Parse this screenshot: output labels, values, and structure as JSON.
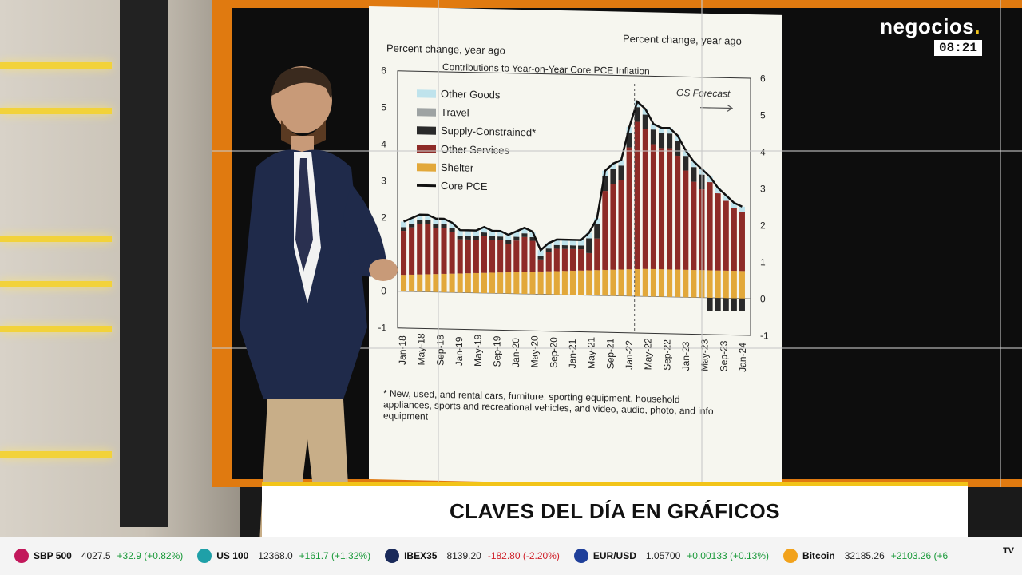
{
  "brand": {
    "name": "negocios",
    "dot": ".",
    "time": "08:21"
  },
  "banner": {
    "title": "CLAVES DEL DÍA EN GRÁFICOS"
  },
  "chart": {
    "left_label": "Percent change, year ago",
    "right_label": "Percent change, year ago",
    "title": "Contributions to Year-on-Year Core PCE Inflation",
    "forecast_label": "GS Forecast",
    "footnote_1": "* New, used, and rental cars, furniture, sporting equipment, household",
    "footnote_2": "appliances, sports and recreational vehicles, and video, audio, photo, and info",
    "footnote_3": "equipment",
    "legend": [
      {
        "label": "Other Goods",
        "color": "#bfe3ec"
      },
      {
        "label": "Travel",
        "color": "#9ea3a3"
      },
      {
        "label": "Supply-Constrained*",
        "color": "#2a2a2a"
      },
      {
        "label": "Other Services",
        "color": "#8e2b27"
      },
      {
        "label": "Shelter",
        "color": "#e2a83a"
      },
      {
        "label": "Core PCE",
        "color": "#111111"
      }
    ],
    "y_ticks_left": [
      "6",
      "5",
      "4",
      "3",
      "2",
      "1",
      "0",
      "-1"
    ],
    "y_ticks_right": [
      "6",
      "5",
      "4",
      "3",
      "2",
      "1",
      "0",
      "-1"
    ],
    "x_ticks": [
      "Jan-18",
      "May-18",
      "Sep-18",
      "Jan-19",
      "May-19",
      "Sep-19",
      "Jan-20",
      "May-20",
      "Sep-20",
      "Jan-21",
      "May-21",
      "Sep-21",
      "Jan-22",
      "May-22",
      "Sep-22",
      "Jan-23",
      "May-23",
      "Sep-23",
      "Jan-24"
    ]
  },
  "chart_data": {
    "type": "bar",
    "ylim": [
      -1,
      6
    ],
    "series": [
      {
        "name": "Core PCE",
        "values": [
          1.9,
          2.0,
          2.1,
          2.1,
          2.0,
          2.0,
          1.9,
          1.7,
          1.7,
          1.7,
          1.8,
          1.7,
          1.7,
          1.6,
          1.7,
          1.8,
          1.7,
          1.2,
          1.4,
          1.5,
          1.5,
          1.5,
          1.5,
          1.7,
          2.1,
          3.4,
          3.6,
          3.7,
          4.6,
          5.3,
          5.1,
          4.7,
          4.6,
          4.6,
          4.4,
          4.0,
          3.7,
          3.5,
          3.3,
          3.0,
          2.8,
          2.6,
          2.5
        ]
      }
    ]
  },
  "ticker": [
    {
      "name": "SBP 500",
      "price": "4027.5",
      "change": "+32.9 (+0.82%)",
      "dir": "up",
      "color": "#c2185b"
    },
    {
      "name": "US 100",
      "price": "12368.0",
      "change": "+161.7 (+1.32%)",
      "dir": "up",
      "color": "#1fa0a8"
    },
    {
      "name": "IBEX35",
      "price": "8139.20",
      "change": "-182.80 (-2.20%)",
      "dir": "dn",
      "color": "#1a2a5a"
    },
    {
      "name": "EUR/USD",
      "price": "1.05700",
      "change": "+0.00133 (+0.13%)",
      "dir": "up",
      "color": "#1f3f9a"
    },
    {
      "name": "Bitcoin",
      "price": "32185.26",
      "change": "+2103.26 (+6",
      "dir": "up",
      "color": "#f2a21b"
    }
  ],
  "tv_mark": "TV"
}
